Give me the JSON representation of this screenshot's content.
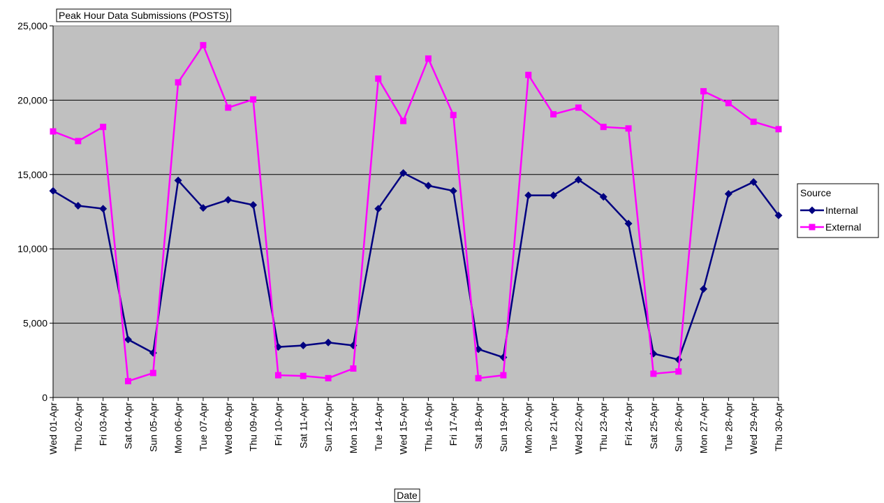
{
  "chart_data": {
    "type": "line",
    "title": "Peak Hour Data Submissions (POSTS)",
    "x_label": "Date",
    "legend_title": "Source",
    "legend_position": "right",
    "grid": true,
    "categories": [
      "Wed 01-Apr",
      "Thu 02-Apr",
      "Fri 03-Apr",
      "Sat 04-Apr",
      "Sun 05-Apr",
      "Mon 06-Apr",
      "Tue 07-Apr",
      "Wed 08-Apr",
      "Thu 09-Apr",
      "Fri 10-Apr",
      "Sat 11-Apr",
      "Sun 12-Apr",
      "Mon 13-Apr",
      "Tue 14-Apr",
      "Wed 15-Apr",
      "Thu 16-Apr",
      "Fri 17-Apr",
      "Sat 18-Apr",
      "Sun 19-Apr",
      "Mon 20-Apr",
      "Tue 21-Apr",
      "Wed 22-Apr",
      "Thu 23-Apr",
      "Fri 24-Apr",
      "Sat 25-Apr",
      "Sun 26-Apr",
      "Mon 27-Apr",
      "Tue 28-Apr",
      "Wed 29-Apr",
      "Thu 30-Apr"
    ],
    "series": [
      {
        "name": "Internal",
        "color": "#000080",
        "marker": "diamond",
        "values": [
          13900,
          12900,
          12700,
          3900,
          3000,
          14600,
          12750,
          13300,
          12950,
          3400,
          3500,
          3700,
          3500,
          12700,
          15100,
          14250,
          13900,
          3250,
          2700,
          13600,
          13600,
          14650,
          13500,
          11700,
          2950,
          2550,
          7300,
          13700,
          14500,
          12250
        ]
      },
      {
        "name": "External",
        "color": "#ff00ff",
        "marker": "square",
        "values": [
          17900,
          17250,
          18200,
          1100,
          1650,
          21200,
          23700,
          19500,
          20050,
          1500,
          1450,
          1300,
          1950,
          21450,
          18600,
          22800,
          19000,
          1300,
          1500,
          21700,
          19050,
          19500,
          18200,
          18100,
          1600,
          1750,
          20600,
          19800,
          18550,
          18050
        ]
      }
    ],
    "ylim": [
      0,
      25000
    ],
    "yticks": [
      0,
      {
        "value": 5000,
        "label": "5,000"
      },
      {
        "value": 10000,
        "label": "10,000"
      },
      {
        "value": 15000,
        "label": "15,000"
      },
      {
        "value": 20000,
        "label": "20,000"
      },
      {
        "value": 25000,
        "label": "25,000"
      }
    ]
  }
}
